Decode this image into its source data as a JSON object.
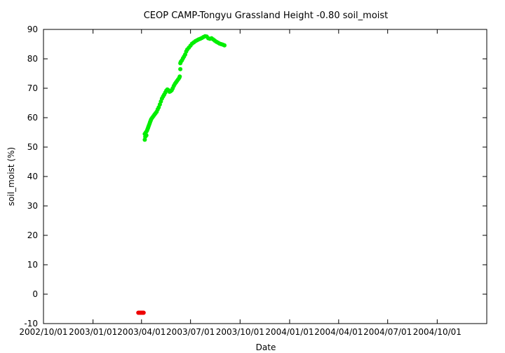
{
  "chart_data": {
    "type": "scatter",
    "title": "CEOP CAMP-Tongyu Grassland Height -0.80 soil_moist",
    "xlabel": "Date",
    "ylabel": "soil_moist (%)",
    "xlim": [
      "2002/10/01",
      "2005/01/01"
    ],
    "ylim": [
      -10,
      90
    ],
    "yticks": [
      -10,
      0,
      10,
      20,
      30,
      40,
      50,
      60,
      70,
      80,
      90
    ],
    "xticks": [
      "2002/10/01",
      "2003/01/01",
      "2003/04/01",
      "2003/07/01",
      "2003/10/01",
      "2004/01/01",
      "2004/04/01",
      "2004/07/01",
      "2004/10/01"
    ],
    "xtick_labels": [
      "2002/10/01",
      "2003/01/01",
      "2003/04/01",
      "2003/07/01",
      "2003/10/01",
      "2004/01/01",
      "2004/04/01",
      "2004/07/01",
      "2004/10/01"
    ],
    "grid": false,
    "series": [
      {
        "color": "#00ee00",
        "points": [
          [
            "2003/04/07",
            52.5
          ],
          [
            "2003/04/07",
            54.5
          ],
          [
            "2003/04/08",
            53.5
          ],
          [
            "2003/04/09",
            55.0
          ],
          [
            "2003/04/10",
            54.0
          ],
          [
            "2003/04/11",
            55.5
          ],
          [
            "2003/04/12",
            56.0
          ],
          [
            "2003/04/13",
            56.5
          ],
          [
            "2003/04/14",
            57.0
          ],
          [
            "2003/04/15",
            57.5
          ],
          [
            "2003/04/16",
            58.0
          ],
          [
            "2003/04/17",
            58.5
          ],
          [
            "2003/04/18",
            59.0
          ],
          [
            "2003/04/19",
            59.5
          ],
          [
            "2003/04/21",
            60.0
          ],
          [
            "2003/04/23",
            60.5
          ],
          [
            "2003/04/25",
            61.0
          ],
          [
            "2003/04/27",
            61.5
          ],
          [
            "2003/04/29",
            62.0
          ],
          [
            "2003/05/01",
            62.8
          ],
          [
            "2003/05/03",
            63.5
          ],
          [
            "2003/05/05",
            64.5
          ],
          [
            "2003/05/07",
            65.5
          ],
          [
            "2003/05/09",
            66.5
          ],
          [
            "2003/05/11",
            67.2
          ],
          [
            "2003/05/13",
            67.8
          ],
          [
            "2003/05/15",
            68.5
          ],
          [
            "2003/05/17",
            69.2
          ],
          [
            "2003/05/19",
            69.6
          ],
          [
            "2003/05/21",
            69.3
          ],
          [
            "2003/05/23",
            68.8
          ],
          [
            "2003/05/25",
            69.0
          ],
          [
            "2003/05/27",
            69.3
          ],
          [
            "2003/05/29",
            70.0
          ],
          [
            "2003/05/31",
            70.8
          ],
          [
            "2003/06/02",
            71.5
          ],
          [
            "2003/06/04",
            72.0
          ],
          [
            "2003/06/06",
            72.5
          ],
          [
            "2003/06/08",
            73.0
          ],
          [
            "2003/06/10",
            73.5
          ],
          [
            "2003/06/11",
            74.0
          ],
          [
            "2003/06/12",
            76.5
          ],
          [
            "2003/06/12",
            78.5
          ],
          [
            "2003/06/13",
            79.0
          ],
          [
            "2003/06/15",
            79.5
          ],
          [
            "2003/06/17",
            80.2
          ],
          [
            "2003/06/19",
            80.8
          ],
          [
            "2003/06/21",
            81.5
          ],
          [
            "2003/06/23",
            82.5
          ],
          [
            "2003/06/25",
            83.2
          ],
          [
            "2003/06/28",
            83.8
          ],
          [
            "2003/07/01",
            84.5
          ],
          [
            "2003/07/04",
            85.2
          ],
          [
            "2003/07/07",
            85.6
          ],
          [
            "2003/07/10",
            86.0
          ],
          [
            "2003/07/13",
            86.3
          ],
          [
            "2003/07/16",
            86.6
          ],
          [
            "2003/07/19",
            86.8
          ],
          [
            "2003/07/22",
            87.1
          ],
          [
            "2003/07/25",
            87.4
          ],
          [
            "2003/07/28",
            87.7
          ],
          [
            "2003/07/31",
            87.6
          ],
          [
            "2003/08/03",
            87.0
          ],
          [
            "2003/08/06",
            86.8
          ],
          [
            "2003/08/09",
            87.0
          ],
          [
            "2003/08/12",
            86.6
          ],
          [
            "2003/08/15",
            86.2
          ],
          [
            "2003/08/18",
            85.8
          ],
          [
            "2003/08/21",
            85.5
          ],
          [
            "2003/08/24",
            85.2
          ],
          [
            "2003/08/27",
            85.0
          ],
          [
            "2003/08/30",
            84.8
          ],
          [
            "2003/09/02",
            84.6
          ]
        ]
      },
      {
        "color": "#ee0000",
        "points": [
          [
            "2003/03/26",
            -6.3
          ],
          [
            "2003/03/27",
            -6.3
          ],
          [
            "2003/03/28",
            -6.3
          ],
          [
            "2003/03/29",
            -6.3
          ],
          [
            "2003/03/30",
            -6.3
          ],
          [
            "2003/03/31",
            -6.3
          ],
          [
            "2003/04/01",
            -6.3
          ],
          [
            "2003/04/02",
            -6.3
          ],
          [
            "2003/04/03",
            -6.3
          ],
          [
            "2003/04/04",
            -6.3
          ],
          [
            "2003/04/05",
            -6.3
          ]
        ]
      }
    ]
  }
}
